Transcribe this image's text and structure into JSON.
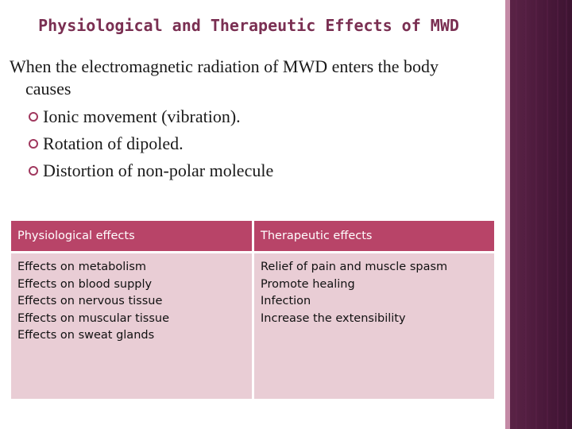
{
  "slide": {
    "title": "Physiological and Therapeutic Effects of MWD",
    "intro_line1": "When the electromagnetic radiation of MWD enters the body",
    "intro_line2": "causes",
    "bullets": [
      "Ionic movement (vibration).",
      "Rotation of dipoled.",
      "Distortion of non-polar molecule"
    ]
  },
  "table": {
    "headers": [
      "Physiological effects",
      "Therapeutic effects"
    ],
    "physiological": [
      "Effects on metabolism",
      "Effects on blood supply",
      "Effects on nervous tissue",
      "Effects on muscular tissue",
      "Effects on sweat glands"
    ],
    "therapeutic": [
      "Relief of pain and  muscle spasm",
      "Promote healing",
      "Infection",
      "Increase the extensibility"
    ]
  },
  "colors": {
    "title": "#7a2f52",
    "header_bg": "#b84468",
    "row_bg": "#e9cdd5",
    "rail": "#49183a",
    "bullet": "#a0385e"
  }
}
